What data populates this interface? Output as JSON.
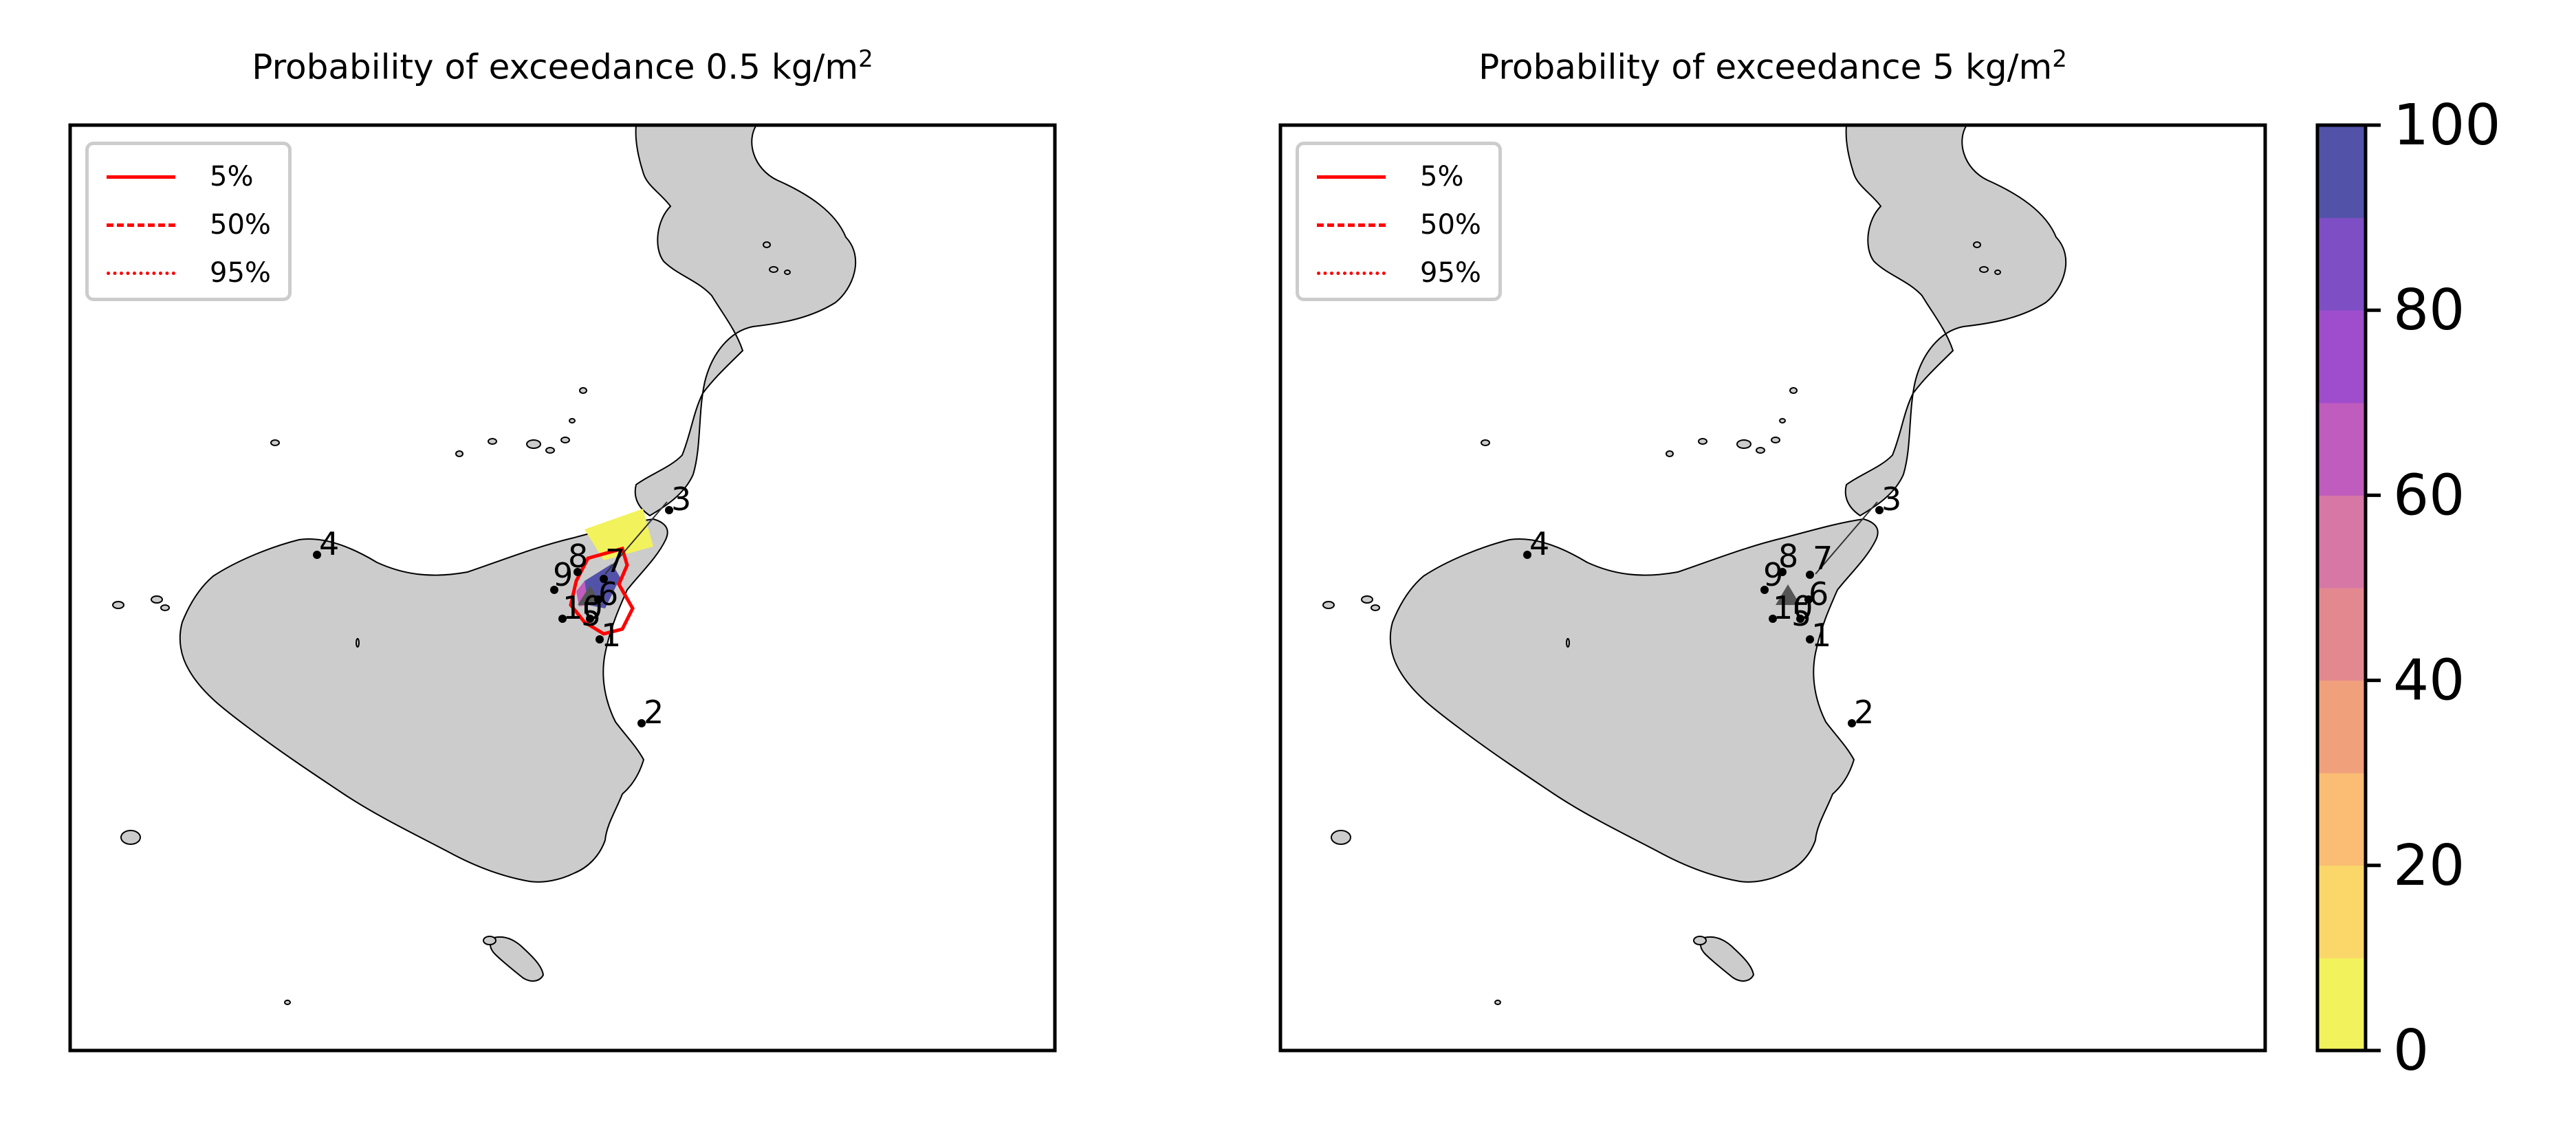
{
  "panels": [
    {
      "title_prefix": "Probability of exceedance 0.5 kg/m",
      "title_sup": "2",
      "legend": [
        {
          "label": "5%",
          "style": "solid"
        },
        {
          "label": "50%",
          "style": "dashed"
        },
        {
          "label": "95%",
          "style": "dotted"
        }
      ],
      "station_labels": [
        "1",
        "2",
        "3",
        "4",
        "5",
        "6",
        "7",
        "8",
        "9",
        "10"
      ]
    },
    {
      "title_prefix": "Probability of exceedance 5 kg/m",
      "title_sup": "2",
      "legend": [
        {
          "label": "5%",
          "style": "solid"
        },
        {
          "label": "50%",
          "style": "dashed"
        },
        {
          "label": "95%",
          "style": "dotted"
        }
      ],
      "station_labels": [
        "1",
        "2",
        "3",
        "4",
        "5",
        "6",
        "7",
        "8",
        "9",
        "10"
      ]
    }
  ],
  "colorbar": {
    "ticks": [
      "0",
      "20",
      "40",
      "60",
      "80",
      "100"
    ],
    "colors": [
      "#f2f25c",
      "#fbd769",
      "#fabd73",
      "#f1a07c",
      "#e48890",
      "#d677a6",
      "#bf5cbd",
      "#a04dcd",
      "#7e4ec5",
      "#5253a8"
    ]
  },
  "colors": {
    "land": "#cccccc",
    "contour": "#ff0000",
    "station": "#000000"
  }
}
